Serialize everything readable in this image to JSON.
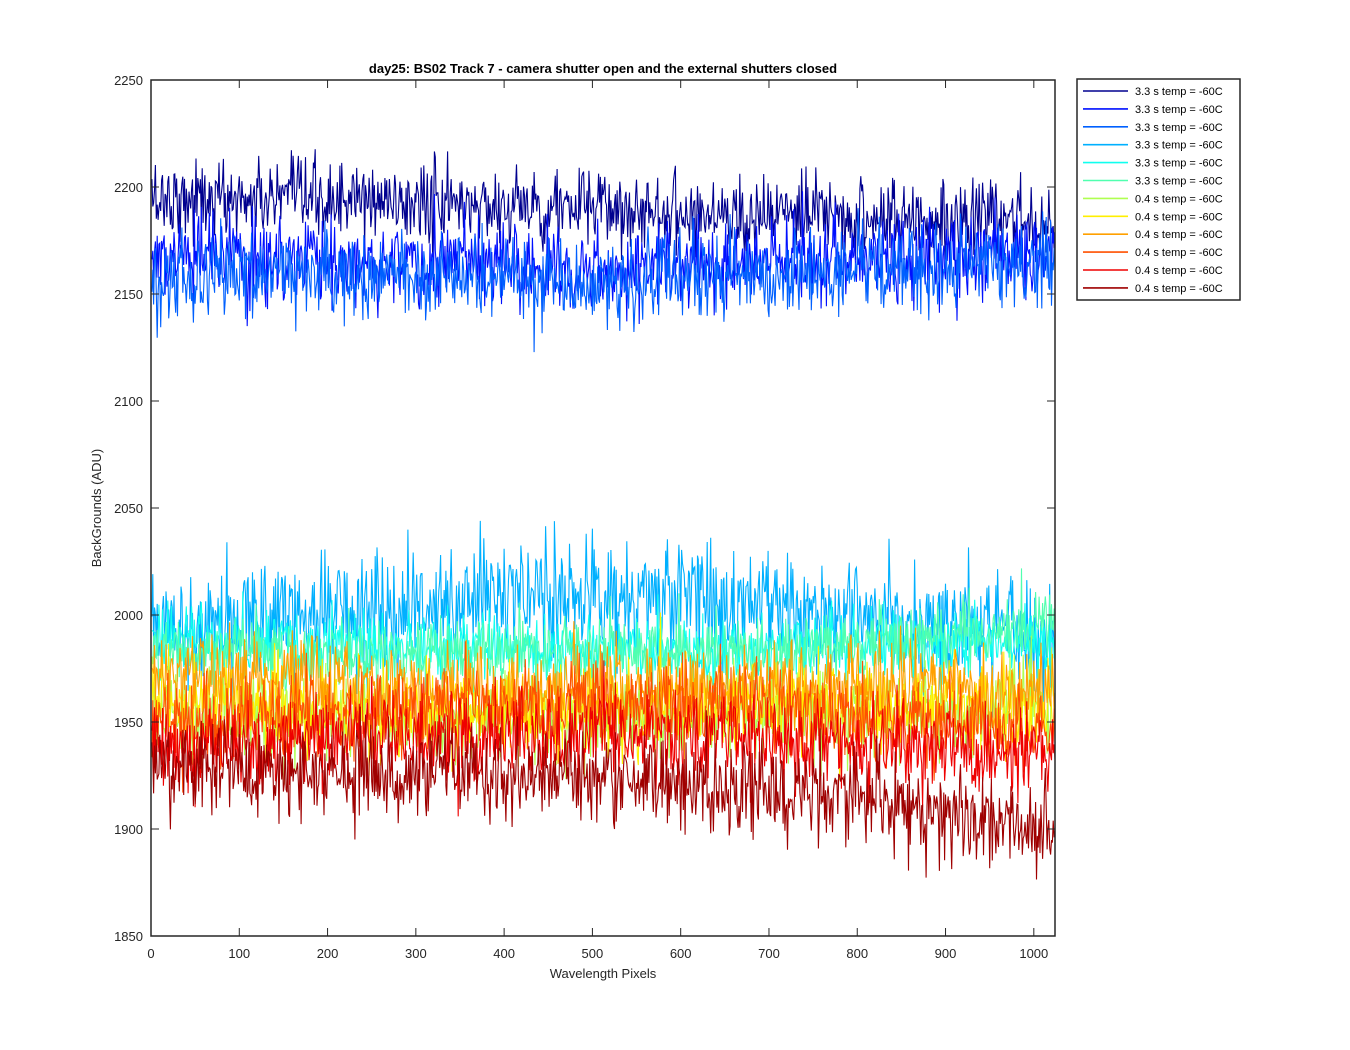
{
  "chart_data": {
    "type": "line",
    "title": "day25: BS02  Track 7 - camera shutter open and the external shutters closed",
    "xlabel": "Wavelength Pixels",
    "ylabel": "BackGrounds (ADU)",
    "xlim": [
      0,
      1024
    ],
    "ylim": [
      1850,
      2250
    ],
    "xticks": [
      0,
      100,
      200,
      300,
      400,
      500,
      600,
      700,
      800,
      900,
      1000
    ],
    "yticks": [
      1850,
      1900,
      1950,
      2000,
      2050,
      2100,
      2150,
      2200,
      2250
    ],
    "grid": false,
    "legend_position": "outside-top-right",
    "n_points": 1024,
    "series": [
      {
        "name": "3.3 s temp = -60C",
        "color": "#00008F",
        "mean": 2190,
        "noise_sd": 9,
        "trend": [
          2195,
          2193,
          2190,
          2186,
          2184
        ]
      },
      {
        "name": "3.3 s temp = -60C",
        "color": "#0010FF",
        "mean": 2165,
        "noise_sd": 10,
        "trend": [
          2167,
          2165,
          2163,
          2165,
          2170
        ]
      },
      {
        "name": "3.3 s temp = -60C",
        "color": "#0060FF",
        "mean": 2160,
        "noise_sd": 10,
        "trend": [
          2158,
          2160,
          2155,
          2160,
          2165
        ]
      },
      {
        "name": "3.3 s temp = -60C",
        "color": "#00B0FF",
        "mean": 2000,
        "noise_sd": 14,
        "trend": [
          1995,
          2005,
          2010,
          2002,
          1990
        ]
      },
      {
        "name": "3.3 s temp = -60C",
        "color": "#10FFEF",
        "mean": 1985,
        "noise_sd": 8,
        "trend": [
          1990,
          1985,
          1983,
          1985,
          1990
        ]
      },
      {
        "name": "3.3 s temp = -60C",
        "color": "#50FFAF",
        "mean": 1985,
        "noise_sd": 8,
        "trend": [
          1982,
          1982,
          1982,
          1985,
          1995
        ]
      },
      {
        "name": "0.4 s temp = -60C",
        "color": "#AFFF50",
        "mean": 1955,
        "noise_sd": 10,
        "trend": [
          1955,
          1950,
          1952,
          1955,
          1958
        ]
      },
      {
        "name": "0.4 s temp = -60C",
        "color": "#FFEF00",
        "mean": 1958,
        "noise_sd": 10,
        "trend": [
          1960,
          1955,
          1955,
          1958,
          1955
        ]
      },
      {
        "name": "0.4 s temp = -60C",
        "color": "#FFA000",
        "mean": 1968,
        "noise_sd": 10,
        "trend": [
          1975,
          1965,
          1965,
          1968,
          1965
        ]
      },
      {
        "name": "0.4 s temp = -60C",
        "color": "#FF5000",
        "mean": 1955,
        "noise_sd": 10,
        "trend": [
          1950,
          1955,
          1960,
          1955,
          1945
        ]
      },
      {
        "name": "0.4 s temp = -60C",
        "color": "#EF0000",
        "mean": 1940,
        "noise_sd": 10,
        "trend": [
          1940,
          1942,
          1945,
          1940,
          1935
        ]
      },
      {
        "name": "0.4 s temp = -60C",
        "color": "#9F0000",
        "mean": 1925,
        "noise_sd": 11,
        "trend": [
          1928,
          1925,
          1925,
          1915,
          1900
        ]
      }
    ]
  }
}
